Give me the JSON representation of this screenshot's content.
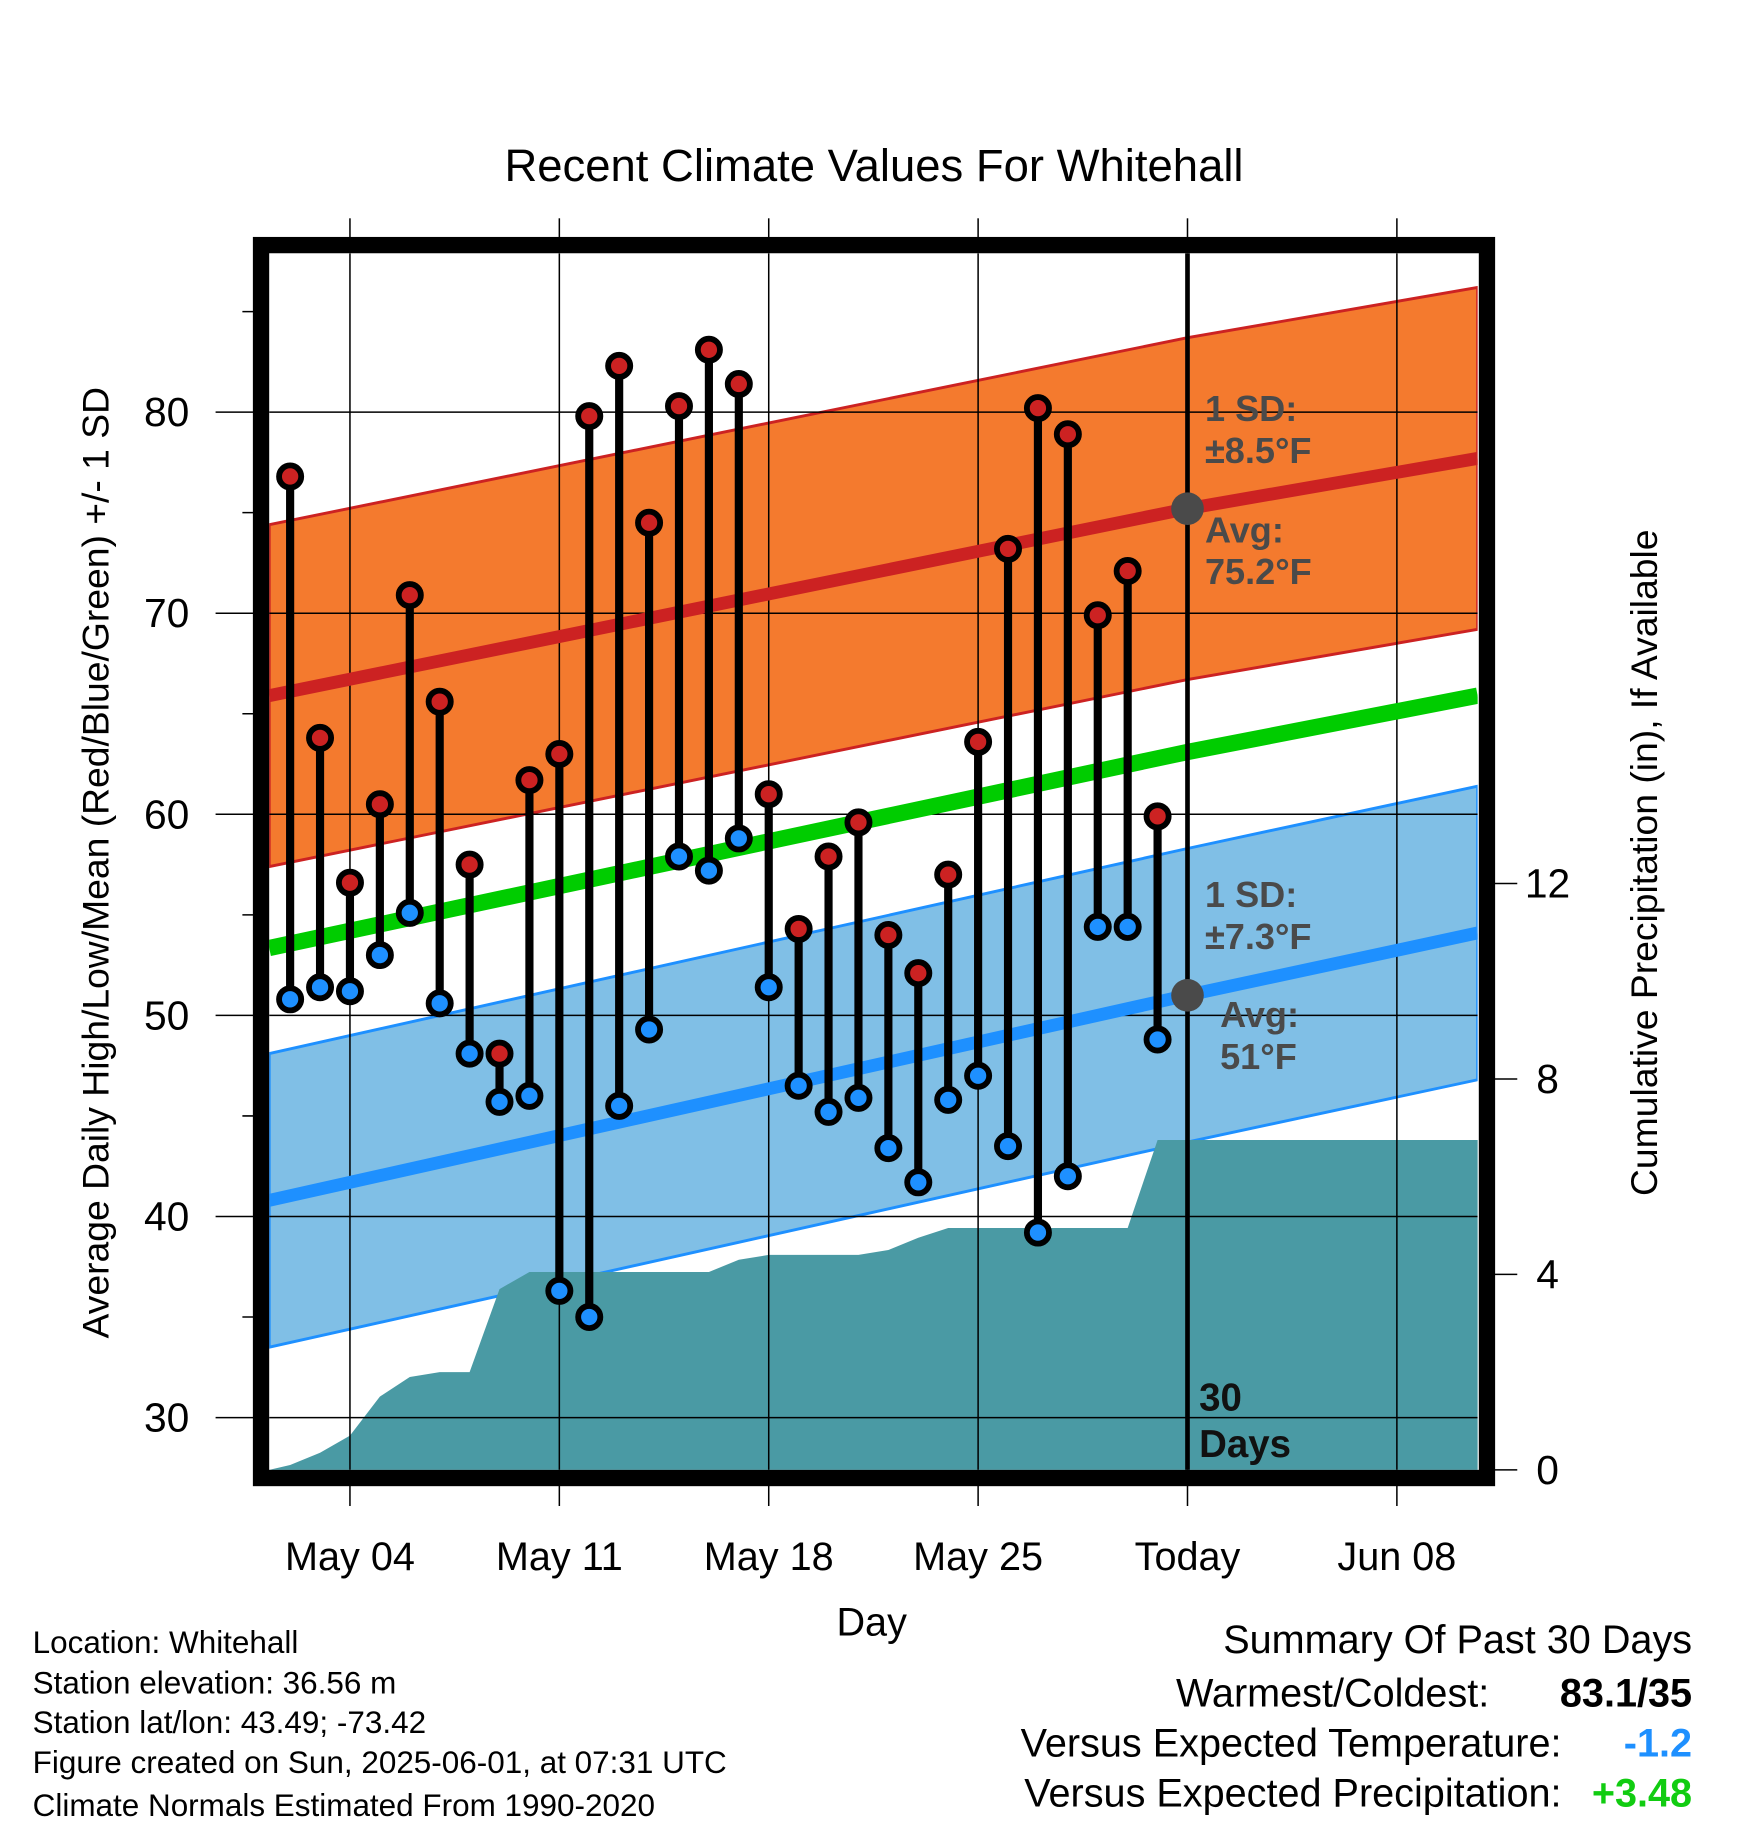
{
  "chart_data": {
    "type": "line",
    "title": "Recent Climate Values For Whitehall",
    "xlabel": "Day",
    "ylabel": "Average Daily High/Low/Mean (Red/Blue/Green) +/- 1 SD",
    "y2label": "Cumulative Precipitation (in), If Available",
    "x_unit": "day-of-May (May 1 = 1)",
    "xlim": [
      1.3,
      41.7
    ],
    "ylim": [
      27.4,
      87.9
    ],
    "y2lim": [
      0,
      24.9
    ],
    "grid": true,
    "x_ticks": [
      {
        "day": 4,
        "label": "May 04"
      },
      {
        "day": 11,
        "label": "May 11"
      },
      {
        "day": 18,
        "label": "May 18"
      },
      {
        "day": 25,
        "label": "May 25"
      },
      {
        "day": 32,
        "label": "Today"
      },
      {
        "day": 39,
        "label": "Jun 08"
      }
    ],
    "y_ticks": [
      30,
      40,
      50,
      60,
      70,
      80
    ],
    "y2_ticks": [
      0,
      4,
      8,
      12
    ],
    "days": [
      2,
      3,
      4,
      5,
      6,
      7,
      8,
      9,
      10,
      11,
      12,
      13,
      14,
      15,
      16,
      17,
      18,
      19,
      20,
      21,
      22,
      23,
      24,
      25,
      26,
      27,
      28,
      29,
      30,
      31
    ],
    "highs": [
      76.8,
      63.8,
      56.6,
      60.5,
      70.9,
      65.6,
      57.5,
      48.1,
      61.7,
      63.0,
      79.8,
      82.3,
      74.5,
      80.3,
      83.1,
      81.4,
      61.0,
      54.3,
      57.9,
      59.6,
      54.0,
      52.1,
      57.0,
      63.6,
      73.2,
      80.2,
      78.9,
      69.9,
      72.1,
      59.9
    ],
    "lows": [
      50.8,
      51.4,
      51.2,
      53.0,
      55.1,
      50.6,
      48.1,
      45.7,
      46.0,
      36.3,
      35.0,
      45.5,
      49.3,
      57.9,
      57.2,
      58.8,
      51.4,
      46.5,
      45.2,
      45.9,
      43.4,
      41.7,
      45.8,
      47.0,
      43.5,
      39.2,
      42.0,
      54.4,
      54.4,
      48.8
    ],
    "normals": {
      "days": [
        1.3,
        32,
        41.7
      ],
      "avg_high": [
        65.9,
        75.2,
        77.7
      ],
      "avg_low": [
        40.8,
        51.0,
        54.1
      ],
      "high_sd": 8.5,
      "low_sd": 7.3
    },
    "precip": {
      "days": [
        1.3,
        2,
        3,
        4,
        5,
        6,
        7,
        8,
        9,
        10,
        11,
        12,
        13,
        14,
        15,
        16,
        17,
        18,
        19,
        20,
        21,
        22,
        23,
        24,
        25,
        26,
        27,
        28,
        29,
        30,
        31,
        41.7
      ],
      "values": [
        0,
        0.1,
        0.35,
        0.7,
        1.5,
        1.9,
        2.0,
        2.0,
        3.7,
        4.05,
        4.05,
        4.05,
        4.05,
        4.05,
        4.05,
        4.05,
        4.3,
        4.4,
        4.4,
        4.4,
        4.4,
        4.5,
        4.75,
        4.95,
        4.95,
        4.95,
        4.95,
        4.95,
        4.95,
        4.95,
        6.75,
        6.75
      ]
    },
    "annotations": {
      "high_sd": [
        "1 SD:",
        "±8.5°F"
      ],
      "high_avg": [
        "Avg:",
        "75.2°F"
      ],
      "low_sd": [
        "1 SD:",
        "±7.3°F"
      ],
      "low_avg": [
        "Avg:",
        "51°F"
      ],
      "window": [
        "30",
        "Days"
      ]
    },
    "colors": {
      "high_band": "#f47a2e",
      "high_line": "#cc2222",
      "low_band": "#80bfe6",
      "low_line": "#1e90ff",
      "mean_line": "#00cc00",
      "precip": "#4a9aa4",
      "high_dot": "#cc2222",
      "low_dot": "#1e90ff",
      "today_dot": "#4a4a4a"
    }
  },
  "footer": {
    "lines": [
      "Location: Whitehall",
      "Station elevation: 36.56 m",
      "Station lat/lon: 43.49; -73.42",
      "Figure created on Sun, 2025-06-01, at 07:31 UTC",
      "Climate Normals Estimated From 1990-2020"
    ],
    "summary_title": "Summary Of Past 30 Days",
    "summary": [
      {
        "label": "Warmest/Coldest:",
        "value": "83.1/35",
        "color": "#000000"
      },
      {
        "label": "Versus Expected Temperature:",
        "value": "-1.2",
        "color": "#1e90ff"
      },
      {
        "label": "Versus Expected Precipitation:",
        "value": "+3.48",
        "color": "#11cc11"
      }
    ]
  }
}
